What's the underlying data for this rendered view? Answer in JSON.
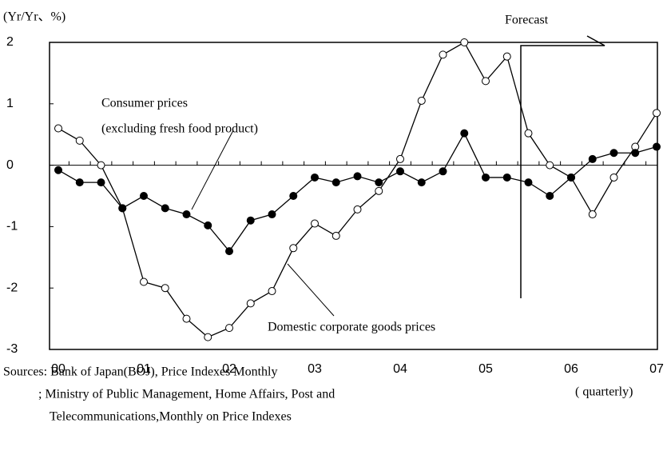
{
  "chart_data": {
    "type": "line",
    "y_label": "(Yr/Yr、%)",
    "categories": [
      "00",
      null,
      null,
      null,
      "01",
      null,
      null,
      null,
      "02",
      null,
      null,
      null,
      "03",
      null,
      null,
      null,
      "04",
      null,
      null,
      null,
      "05",
      null,
      null,
      null,
      "06",
      null,
      null,
      null,
      "07"
    ],
    "series": [
      {
        "name": "Domestic corporate goods prices",
        "color": "#000000",
        "marker": "open",
        "values": [
          0.6,
          0.4,
          0.0,
          -0.7,
          -1.9,
          -2.0,
          -2.5,
          -2.8,
          -2.65,
          -2.25,
          -2.05,
          -1.35,
          -0.95,
          -1.15,
          -0.72,
          -0.42,
          0.1,
          1.05,
          1.8,
          2.0,
          1.37,
          1.77,
          0.52,
          0.0,
          -0.2,
          -0.8,
          -0.2,
          0.3,
          0.85
        ]
      },
      {
        "name": "Consumer prices",
        "color": "#000000",
        "marker": "filled",
        "values": [
          -0.08,
          -0.28,
          -0.28,
          -0.7,
          -0.5,
          -0.7,
          -0.8,
          -0.98,
          -1.4,
          -0.9,
          -0.8,
          -0.5,
          -0.2,
          -0.28,
          -0.18,
          -0.28,
          -0.1,
          -0.28,
          -0.1,
          0.52,
          -0.2,
          -0.2,
          -0.28,
          -0.5,
          -0.2,
          0.1,
          0.2,
          0.2,
          0.3
        ]
      }
    ],
    "annotations": [
      "(excluding fresh food product)",
      "Forecast"
    ],
    "x_unit": "( quarterly)",
    "sources": [
      "Sources: Bank of Japan(BOJ), Price Indexes Monthly",
      "; Ministry of Public Management, Home Affairs, Post and",
      "Telecommunications,Monthly on Price Indexes"
    ],
    "ylim": [
      -3,
      2
    ],
    "yticks": [
      -3,
      -2,
      -1,
      0,
      1,
      2
    ],
    "grid": false
  }
}
